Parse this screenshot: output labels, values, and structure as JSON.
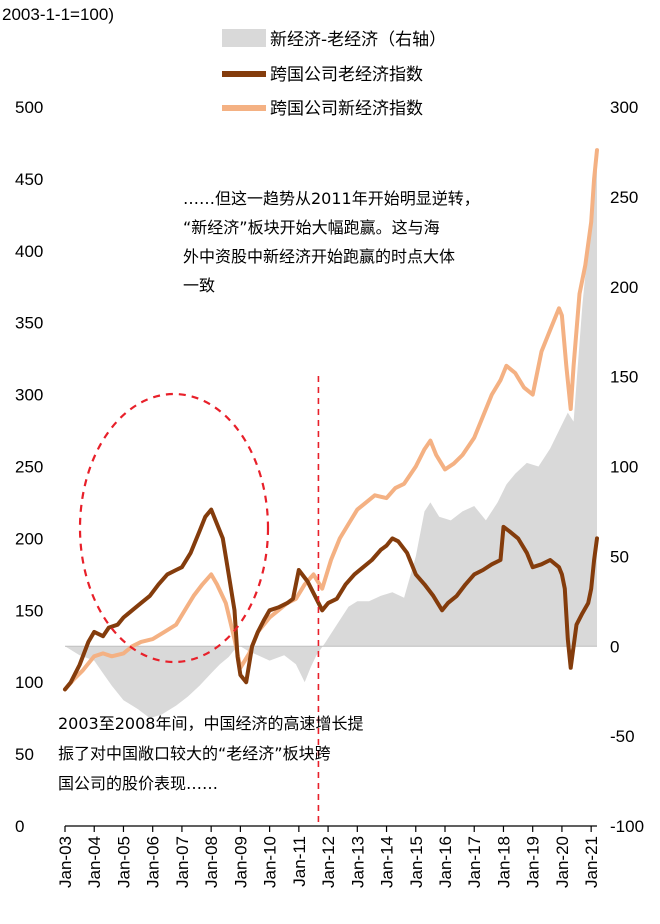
{
  "chart_data": {
    "type": "line",
    "ylabel": "2003-1-1=100)",
    "x_tick_labels": [
      "Jan-03",
      "Jan-04",
      "Jan-05",
      "Jan-06",
      "Jan-07",
      "Jan-08",
      "Jan-09",
      "Jan-10",
      "Jan-11",
      "Jan-12",
      "Jan-13",
      "Jan-14",
      "Jan-15",
      "Jan-16",
      "Jan-17",
      "Jan-18",
      "Jan-19",
      "Jan-20",
      "Jan-21"
    ],
    "y_left_ticks": [
      "0",
      "50",
      "100",
      "150",
      "200",
      "250",
      "300",
      "350",
      "400",
      "450",
      "500"
    ],
    "y_left_range": [
      0,
      500
    ],
    "y_right_ticks": [
      "-100",
      "-50",
      "0",
      "50",
      "100",
      "150",
      "200",
      "250",
      "300"
    ],
    "y_right_range": [
      -100,
      300
    ],
    "vline_x": 2011.67,
    "series": [
      {
        "name": "新经济-老经济（右轴）",
        "type": "area",
        "axis": "right",
        "color": "#d9d9d9",
        "x": [
          2003.0,
          2003.5,
          2004.0,
          2004.3,
          2004.6,
          2005.0,
          2005.5,
          2005.9,
          2006.3,
          2006.8,
          2007.2,
          2007.6,
          2008.0,
          2008.3,
          2008.6,
          2008.8,
          2009.0,
          2009.3,
          2009.6,
          2010.0,
          2010.5,
          2010.9,
          2011.2,
          2011.4,
          2011.6,
          2011.9,
          2012.3,
          2012.7,
          2013.0,
          2013.4,
          2013.8,
          2014.2,
          2014.6,
          2015.0,
          2015.3,
          2015.5,
          2015.8,
          2016.2,
          2016.6,
          2017.0,
          2017.4,
          2017.8,
          2018.1,
          2018.4,
          2018.8,
          2019.2,
          2019.6,
          2019.9,
          2020.2,
          2020.4,
          2020.7,
          2021.0,
          2021.2
        ],
        "values": [
          0,
          -5,
          -8,
          -15,
          -22,
          -30,
          -35,
          -40,
          -38,
          -33,
          -28,
          -22,
          -15,
          -10,
          -6,
          -2,
          0,
          -3,
          -5,
          -8,
          -5,
          -10,
          -20,
          -12,
          -5,
          2,
          12,
          22,
          25,
          25,
          28,
          30,
          27,
          50,
          75,
          80,
          72,
          70,
          75,
          78,
          70,
          80,
          90,
          96,
          102,
          100,
          110,
          120,
          130,
          125,
          190,
          240,
          270
        ]
      },
      {
        "name": "跨国公司老经济指数",
        "type": "line",
        "axis": "left",
        "color": "#843c0c",
        "x": [
          2003.0,
          2003.2,
          2003.5,
          2003.8,
          2004.0,
          2004.3,
          2004.5,
          2004.8,
          2005.0,
          2005.3,
          2005.6,
          2005.9,
          2006.2,
          2006.5,
          2006.8,
          2007.0,
          2007.3,
          2007.6,
          2007.8,
          2008.0,
          2008.2,
          2008.4,
          2008.6,
          2008.8,
          2008.9,
          2009.0,
          2009.2,
          2009.4,
          2009.6,
          2009.8,
          2010.0,
          2010.3,
          2010.6,
          2010.8,
          2011.0,
          2011.3,
          2011.6,
          2011.8,
          2012.0,
          2012.3,
          2012.6,
          2012.9,
          2013.2,
          2013.5,
          2013.8,
          2014.0,
          2014.2,
          2014.4,
          2014.7,
          2015.0,
          2015.3,
          2015.6,
          2015.9,
          2016.1,
          2016.4,
          2016.7,
          2017.0,
          2017.3,
          2017.6,
          2017.9,
          2018.0,
          2018.2,
          2018.5,
          2018.8,
          2019.0,
          2019.3,
          2019.6,
          2019.9,
          2020.0,
          2020.1,
          2020.2,
          2020.3,
          2020.5,
          2020.7,
          2020.9,
          2021.0,
          2021.1,
          2021.2
        ],
        "values": [
          95,
          100,
          112,
          128,
          135,
          132,
          138,
          140,
          145,
          150,
          155,
          160,
          168,
          175,
          178,
          180,
          190,
          205,
          215,
          220,
          210,
          200,
          175,
          150,
          118,
          105,
          100,
          125,
          135,
          143,
          150,
          152,
          155,
          158,
          178,
          170,
          158,
          150,
          155,
          158,
          168,
          175,
          180,
          185,
          192,
          195,
          200,
          198,
          190,
          175,
          168,
          160,
          150,
          155,
          160,
          168,
          175,
          178,
          182,
          185,
          208,
          205,
          200,
          190,
          180,
          182,
          185,
          180,
          175,
          165,
          130,
          110,
          140,
          148,
          155,
          165,
          185,
          200
        ]
      },
      {
        "name": "跨国公司新经济指数",
        "type": "line",
        "axis": "left",
        "color": "#f4b183",
        "x": [
          2003.0,
          2003.3,
          2003.6,
          2004.0,
          2004.3,
          2004.6,
          2005.0,
          2005.3,
          2005.6,
          2006.0,
          2006.4,
          2006.8,
          2007.1,
          2007.4,
          2007.7,
          2008.0,
          2008.2,
          2008.5,
          2008.8,
          2009.0,
          2009.3,
          2009.6,
          2010.0,
          2010.3,
          2010.6,
          2010.9,
          2011.2,
          2011.5,
          2011.8,
          2012.1,
          2012.4,
          2012.7,
          2013.0,
          2013.3,
          2013.6,
          2014.0,
          2014.3,
          2014.6,
          2015.0,
          2015.3,
          2015.5,
          2015.7,
          2016.0,
          2016.3,
          2016.6,
          2017.0,
          2017.3,
          2017.6,
          2017.9,
          2018.1,
          2018.4,
          2018.7,
          2019.0,
          2019.3,
          2019.6,
          2019.9,
          2020.0,
          2020.15,
          2020.3,
          2020.4,
          2020.6,
          2020.8,
          2021.0,
          2021.1,
          2021.2
        ],
        "values": [
          95,
          102,
          108,
          118,
          120,
          118,
          120,
          125,
          128,
          130,
          135,
          140,
          150,
          160,
          168,
          175,
          168,
          155,
          130,
          110,
          120,
          135,
          145,
          150,
          155,
          158,
          168,
          175,
          165,
          185,
          200,
          210,
          220,
          225,
          230,
          228,
          235,
          238,
          250,
          262,
          268,
          258,
          248,
          252,
          258,
          270,
          285,
          300,
          310,
          320,
          315,
          305,
          300,
          330,
          345,
          360,
          355,
          320,
          290,
          320,
          370,
          390,
          420,
          450,
          470
        ]
      }
    ]
  },
  "legend": [
    {
      "label": "新经济-老经济（右轴）",
      "color": "#d9d9d9"
    },
    {
      "label": "跨国公司老经济指数",
      "color": "#843c0c"
    },
    {
      "label": "跨国公司新经济指数",
      "color": "#f4b183"
    }
  ],
  "annotations": {
    "top_lines": [
      "……但这一趋势从2011年开始明显逆转，",
      "“新经济”板块开始大幅跑赢。这与海",
      "外中资股中新经济开始跑赢的时点大体",
      "一致"
    ],
    "bottom_lines": [
      "2003至2008年间，中国经济的高速增长提",
      "振了对中国敞口较大的“老经济”板块跨",
      "国公司的股价表现……"
    ]
  }
}
